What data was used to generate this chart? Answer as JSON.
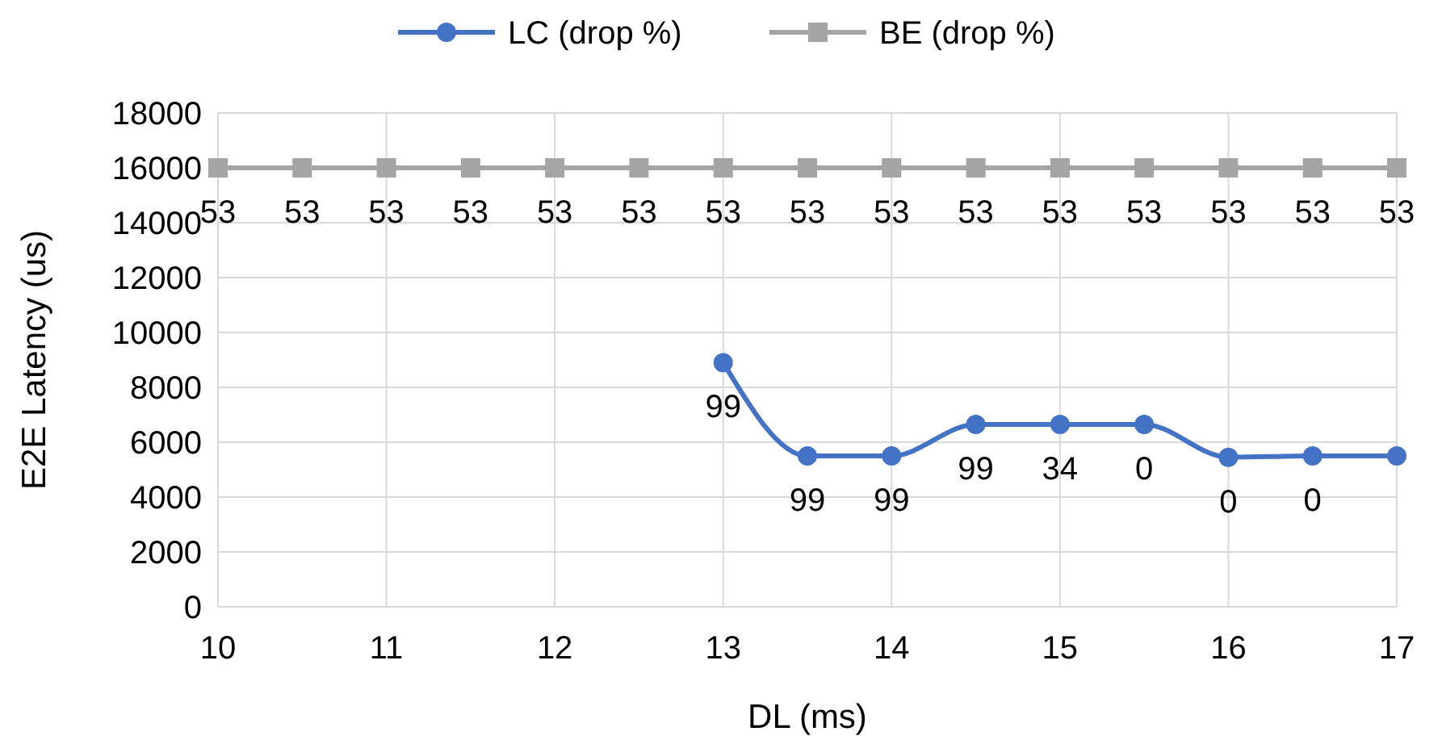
{
  "chart_data": {
    "type": "line",
    "xlabel": "DL (ms)",
    "ylabel": "E2E Latency (us)",
    "xlim": [
      10,
      17
    ],
    "xticks": [
      10,
      11,
      12,
      13,
      14,
      15,
      16,
      17
    ],
    "ylim": [
      0,
      18000
    ],
    "yticks": [
      0,
      2000,
      4000,
      6000,
      8000,
      10000,
      12000,
      14000,
      16000,
      18000
    ],
    "grid": true,
    "legend": "top",
    "series": [
      {
        "name": "LC (drop %)",
        "color": "#4472c4",
        "marker": "circle",
        "x": [
          13,
          13.5,
          14,
          14.5,
          15,
          15.5,
          16,
          16.5,
          17
        ],
        "values": [
          8900,
          5500,
          5500,
          6650,
          6650,
          6650,
          5450,
          5500,
          5500
        ]
      },
      {
        "name": "BE (drop %)",
        "color": "#a5a5a5",
        "marker": "square",
        "x": [
          10,
          10.5,
          11,
          11.5,
          12,
          12.5,
          13,
          13.5,
          14,
          14.5,
          15,
          15.5,
          16,
          16.5,
          17
        ],
        "values": [
          16000,
          16000,
          16000,
          16000,
          16000,
          16000,
          16000,
          16000,
          16000,
          16000,
          16000,
          16000,
          16000,
          16000,
          16000
        ]
      }
    ],
    "annotations": [
      {
        "text": "99",
        "x": 13,
        "y": 8900
      },
      {
        "text": "99",
        "x": 13.5,
        "y": 5500
      },
      {
        "text": "99",
        "x": 14,
        "y": 5500
      },
      {
        "text": "99",
        "x": 14.5,
        "y": 6650
      },
      {
        "text": "34",
        "x": 15,
        "y": 6650
      },
      {
        "text": "0",
        "x": 15.5,
        "y": 6650
      },
      {
        "text": "0",
        "x": 16,
        "y": 5450
      },
      {
        "text": "0",
        "x": 16.5,
        "y": 5500
      },
      {
        "text": "53",
        "x": 10,
        "y": 16000
      },
      {
        "text": "53",
        "x": 10.5,
        "y": 16000
      },
      {
        "text": "53",
        "x": 11,
        "y": 16000
      },
      {
        "text": "53",
        "x": 11.5,
        "y": 16000
      },
      {
        "text": "53",
        "x": 12,
        "y": 16000
      },
      {
        "text": "53",
        "x": 12.5,
        "y": 16000
      },
      {
        "text": "53",
        "x": 13,
        "y": 16000
      },
      {
        "text": "53",
        "x": 13.5,
        "y": 16000
      },
      {
        "text": "53",
        "x": 14,
        "y": 16000
      },
      {
        "text": "53",
        "x": 14.5,
        "y": 16000
      },
      {
        "text": "53",
        "x": 15,
        "y": 16000
      },
      {
        "text": "53",
        "x": 15.5,
        "y": 16000
      },
      {
        "text": "53",
        "x": 16,
        "y": 16000
      },
      {
        "text": "53",
        "x": 16.5,
        "y": 16000
      },
      {
        "text": "53",
        "x": 17,
        "y": 16000
      }
    ]
  }
}
